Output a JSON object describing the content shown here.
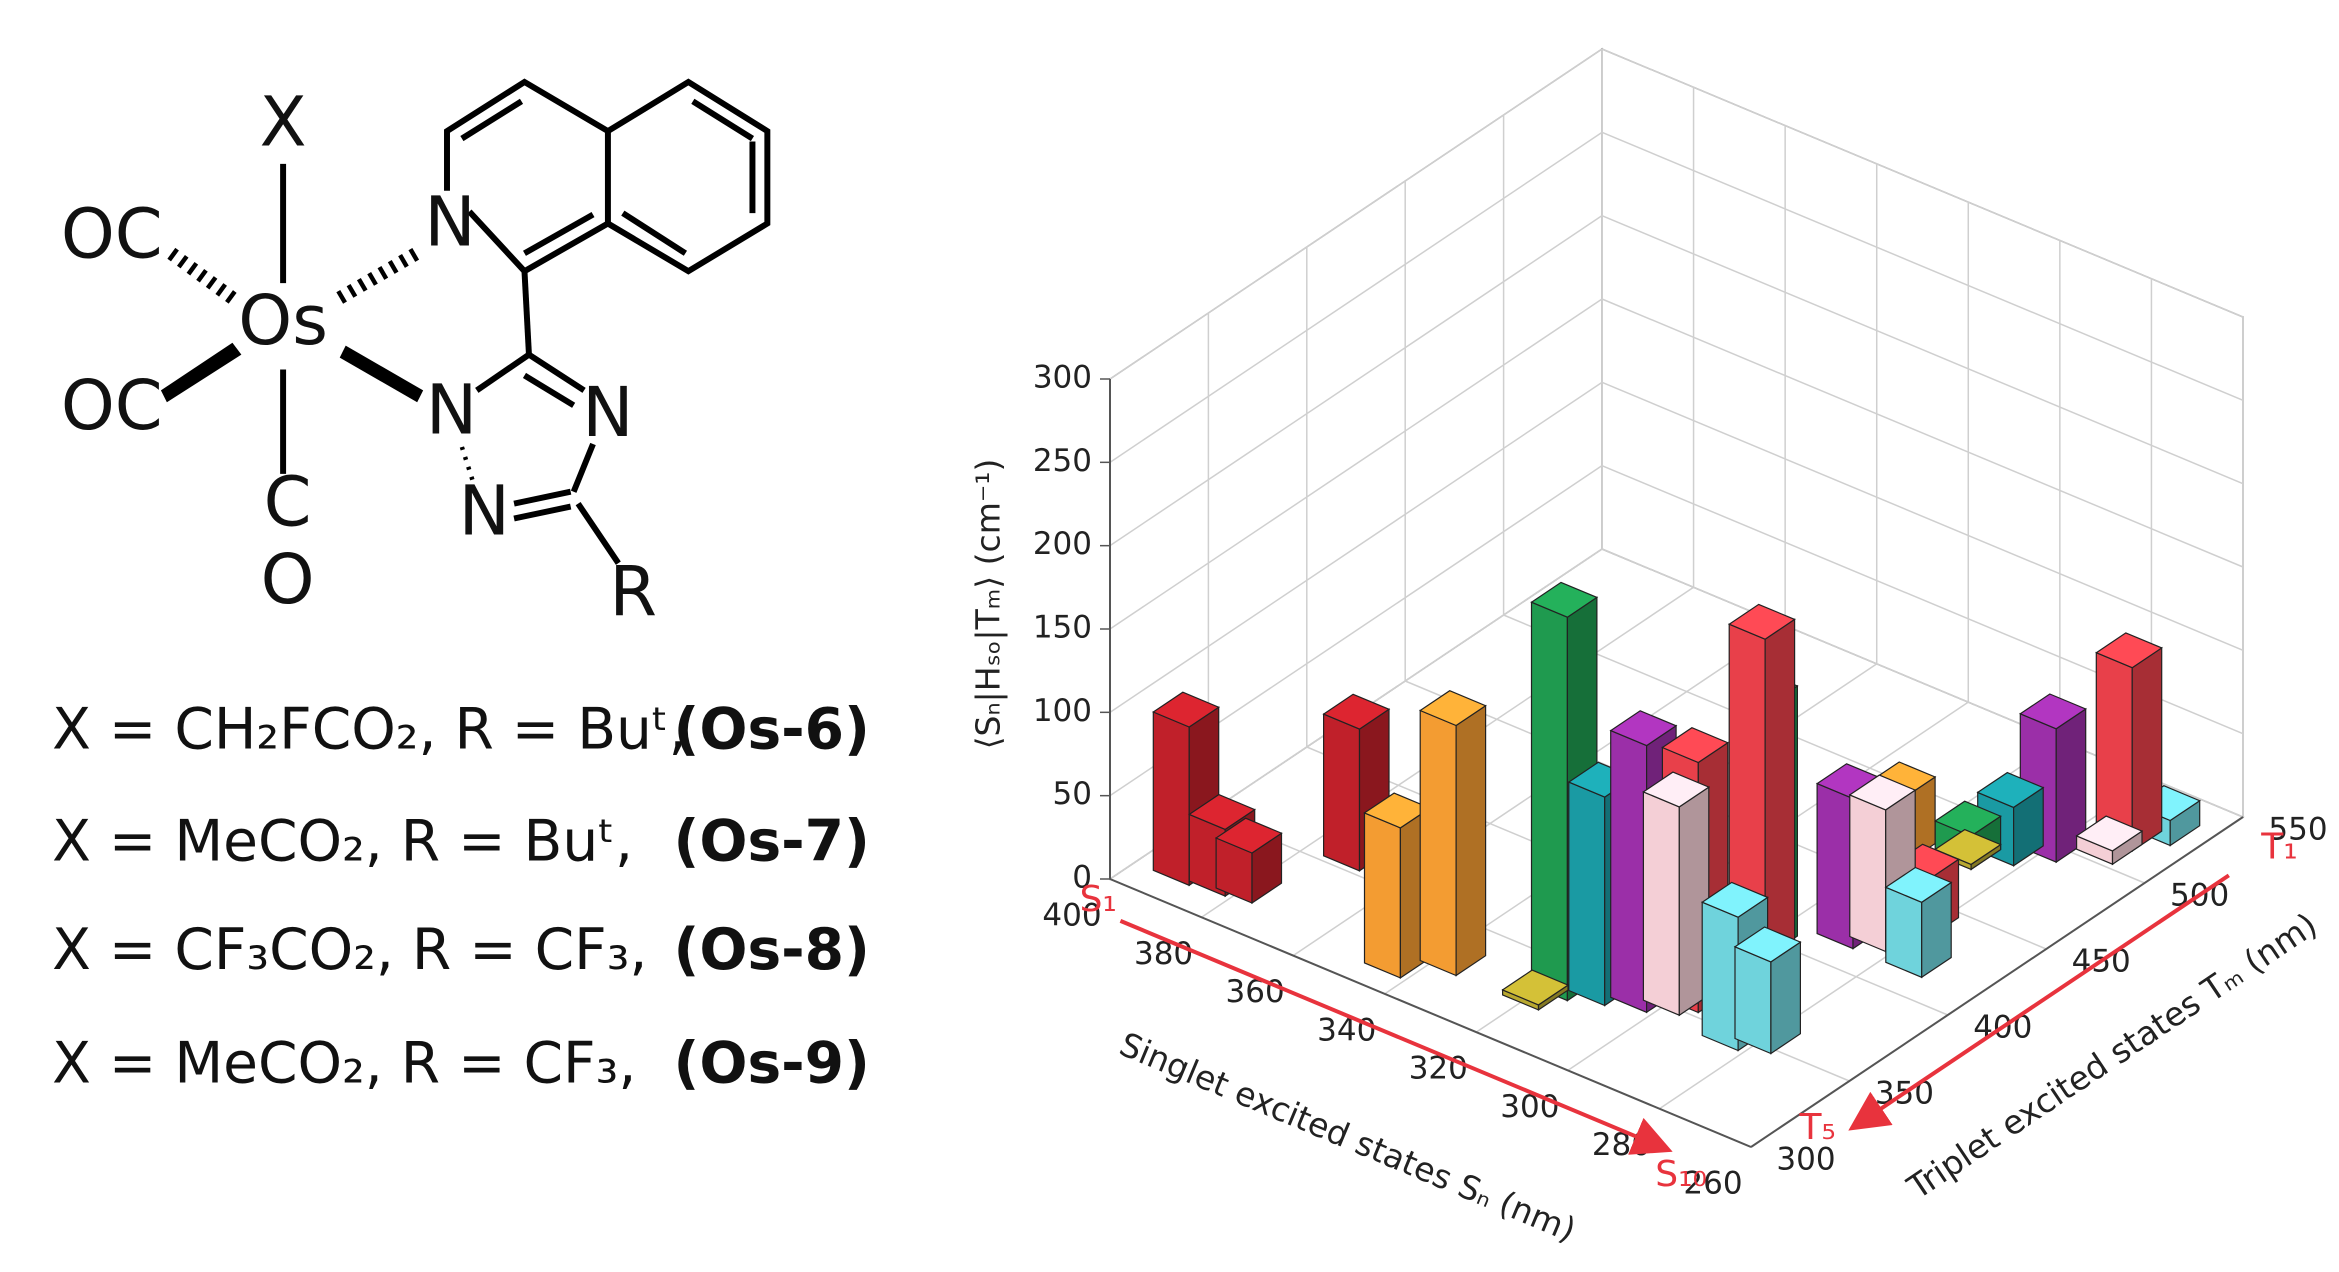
{
  "structure": {
    "atoms": {
      "x": "X",
      "oc_top": "OC",
      "os": "Os",
      "n_iso": "N",
      "oc_bottom": "OC",
      "n_triazole_1": "N",
      "n_triazole_2": "N",
      "n_triazole_3": "N",
      "c": "C",
      "o": "O",
      "r": "R"
    },
    "variants": [
      {
        "formula": "X = CH₂FCO₂, R = Buᵗ,",
        "compound": "(Os-6)"
      },
      {
        "formula": "X = MeCO₂, R = Buᵗ,",
        "compound": "(Os-7)"
      },
      {
        "formula": "X = CF₃CO₂, R = CF₃,",
        "compound": "(Os-8)"
      },
      {
        "formula": "X = MeCO₂, R = CF₃,",
        "compound": "(Os-9)"
      }
    ]
  },
  "chart_data": {
    "type": "bar3d",
    "xlabel": "Singlet  excited states Sₙ (nm)",
    "ylabel": "Triplet excited states Tₘ (nm)",
    "zlabel": "⟨Sₙ|Hₛₒ|Tₘ⟩ (cm⁻¹)",
    "xlim": [
      400,
      260
    ],
    "xticks": [
      400,
      380,
      360,
      340,
      320,
      300,
      280,
      260
    ],
    "ylim": [
      300,
      550
    ],
    "yticks": [
      300,
      350,
      400,
      450,
      500,
      550
    ],
    "zlim": [
      0,
      300
    ],
    "zticks": [
      0,
      50,
      100,
      150,
      200,
      250,
      300
    ],
    "grid": true,
    "annotations": {
      "s_first": "S₁",
      "s_last": "S₁₀",
      "t_first": "T₁",
      "t_last": "T₅"
    },
    "bars": {
      "x": [
        392,
        385,
        380,
        372,
        345,
        338,
        300,
        318,
        300,
        290,
        312,
        285,
        305,
        290,
        280,
        300,
        285,
        272,
        292,
        298,
        282,
        272,
        285,
        280,
        275,
        268,
        320,
        290
      ],
      "y": [
        320,
        322,
        324,
        360,
        318,
        330,
        470,
        340,
        400,
        480,
        345,
        490,
        350,
        420,
        500,
        355,
        425,
        510,
        380,
        360,
        440,
        520,
        350,
        355,
        420,
        530,
        330,
        480
      ],
      "values": [
        95,
        40,
        30,
        85,
        90,
        150,
        40,
        230,
        150,
        20,
        125,
        35,
        160,
        90,
        80,
        125,
        85,
        8,
        215,
        150,
        35,
        110,
        80,
        55,
        45,
        15,
        3,
        3
      ],
      "colors": [
        "#c0202a",
        "#c0202a",
        "#c0202a",
        "#c0202a",
        "#f39c32",
        "#f39c32",
        "#f39c32",
        "#1f9a4f",
        "#1f9a4f",
        "#1f9a4f",
        "#1a9aa3",
        "#1a9aa3",
        "#9b2fa8",
        "#9b2fa8",
        "#9b2fa8",
        "#f4cfd6",
        "#f4cfd6",
        "#f4cfd6",
        "#e8404a",
        "#e8404a",
        "#e8404a",
        "#e8404a",
        "#6fd3dc",
        "#6fd3dc",
        "#6fd3dc",
        "#6fd3dc",
        "#b8a830",
        "#b8a830"
      ]
    }
  }
}
